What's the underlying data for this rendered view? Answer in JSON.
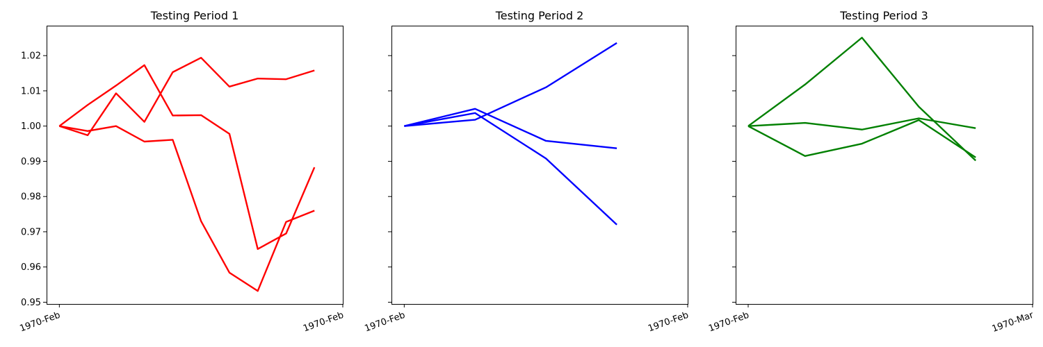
{
  "chart_data": [
    {
      "type": "line",
      "title": "Testing Period 1",
      "color": "#ff0000",
      "ylim": [
        0.9495,
        1.0285
      ],
      "yticks": [
        0.95,
        0.96,
        0.97,
        0.98,
        0.99,
        1.0,
        1.01,
        1.02
      ],
      "ytick_labels": [
        "0.95",
        "0.96",
        "0.97",
        "0.98",
        "0.99",
        "1.00",
        "1.01",
        "1.02"
      ],
      "xticks": [
        0,
        10
      ],
      "xtick_labels": [
        "1970-Feb",
        "1970-Feb"
      ],
      "xlim": [
        -0.45,
        10
      ],
      "x": [
        0,
        1,
        2,
        3,
        4,
        5,
        6,
        7,
        8,
        9
      ],
      "series": [
        {
          "values": [
            1.0,
            1.006,
            1.0115,
            1.0173,
            1.003,
            1.0031,
            0.9978,
            0.9651,
            0.9695,
            0.9883
          ]
        },
        {
          "values": [
            1.0,
            0.9974,
            1.0093,
            1.0012,
            1.0153,
            1.0194,
            1.0112,
            1.0135,
            1.0133,
            1.0158
          ]
        },
        {
          "values": [
            1.0,
            0.9986,
            1.0,
            0.9956,
            0.9961,
            0.973,
            0.9584,
            0.9532,
            0.9728,
            0.976
          ]
        }
      ]
    },
    {
      "type": "line",
      "title": "Testing Period 2",
      "color": "#0000ff",
      "ylim": [
        0.9495,
        1.0285
      ],
      "yticks": [
        0.95,
        0.96,
        0.97,
        0.98,
        0.99,
        1.0,
        1.01,
        1.02
      ],
      "ytick_labels": [],
      "xticks": [
        0,
        4
      ],
      "xtick_labels": [
        "1970-Feb",
        "1970-Feb"
      ],
      "xlim": [
        -0.18,
        4
      ],
      "x": [
        0,
        1,
        2,
        3
      ],
      "series": [
        {
          "values": [
            1.0,
            1.0018,
            1.011,
            1.0236
          ]
        },
        {
          "values": [
            1.0,
            1.0049,
            0.9958,
            0.9937
          ]
        },
        {
          "values": [
            1.0,
            1.0037,
            0.9908,
            0.972
          ]
        }
      ]
    },
    {
      "type": "line",
      "title": "Testing Period 3",
      "color": "#008000",
      "ylim": [
        0.9495,
        1.0285
      ],
      "yticks": [
        0.95,
        0.96,
        0.97,
        0.98,
        0.99,
        1.0,
        1.01,
        1.02
      ],
      "ytick_labels": [],
      "xticks": [
        0,
        5
      ],
      "xtick_labels": [
        "1970-Feb",
        "1970-Mar"
      ],
      "xlim": [
        -0.22,
        5
      ],
      "x": [
        0,
        1,
        2,
        3,
        4
      ],
      "series": [
        {
          "values": [
            1.0,
            1.0118,
            1.0251,
            1.0055,
            0.9902
          ]
        },
        {
          "values": [
            1.0,
            1.0009,
            0.999,
            1.0022,
            0.9994
          ]
        },
        {
          "values": [
            1.0,
            0.9915,
            0.995,
            1.0017,
            0.9911
          ]
        }
      ]
    }
  ]
}
